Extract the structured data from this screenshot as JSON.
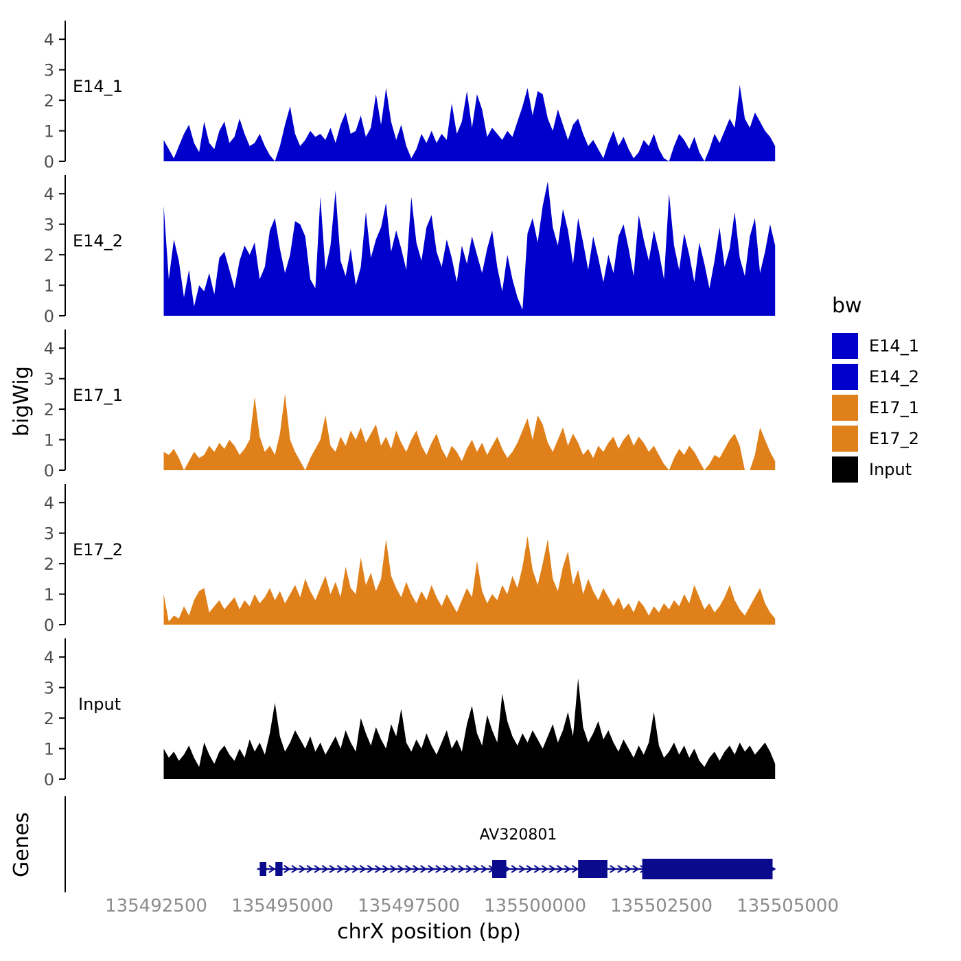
{
  "chart_data": {
    "type": "area",
    "title": "",
    "xlabel": "chrX position (bp)",
    "ylabel": "bigWig",
    "genes_axis_label": "Genes",
    "x_domain": [
      135490700,
      135505100
    ],
    "x_ticks": [
      135492500,
      135495000,
      135497500,
      135500000,
      135502500,
      135505000
    ],
    "y_ticks": [
      0,
      1,
      2,
      3,
      4
    ],
    "y_max": 4.5,
    "x_start": 135492650,
    "x_step": 100,
    "grid": "off",
    "legend_position": "right",
    "tracks": [
      {
        "name": "E14_1",
        "color": "#0000CD",
        "values": [
          0.7,
          0.4,
          0.1,
          0.5,
          0.9,
          1.2,
          0.6,
          0.3,
          1.3,
          0.6,
          0.4,
          1.0,
          1.3,
          0.6,
          0.8,
          1.4,
          0.9,
          0.5,
          0.6,
          0.9,
          0.5,
          0.2,
          0.0,
          0.5,
          1.2,
          1.8,
          0.9,
          0.5,
          0.7,
          1.0,
          0.8,
          0.9,
          0.7,
          1.1,
          0.6,
          1.2,
          1.6,
          0.9,
          1.0,
          1.5,
          0.8,
          1.1,
          2.2,
          1.2,
          2.4,
          1.3,
          0.7,
          1.2,
          0.5,
          0.1,
          0.4,
          0.9,
          0.6,
          1.0,
          0.6,
          0.9,
          0.7,
          1.9,
          0.9,
          1.3,
          2.3,
          1.1,
          2.2,
          1.7,
          0.8,
          1.1,
          0.9,
          0.7,
          1.0,
          0.8,
          1.3,
          1.8,
          2.4,
          1.5,
          2.3,
          2.2,
          1.4,
          1.0,
          1.7,
          1.2,
          0.7,
          1.2,
          1.4,
          0.9,
          0.5,
          0.7,
          0.4,
          0.1,
          0.6,
          1.0,
          0.5,
          0.8,
          0.4,
          0.1,
          0.3,
          0.7,
          0.5,
          0.9,
          0.4,
          0.1,
          0.0,
          0.5,
          0.9,
          0.7,
          0.4,
          0.8,
          0.3,
          0.0,
          0.4,
          0.9,
          0.6,
          1.0,
          1.4,
          1.1,
          2.5,
          1.4,
          1.1,
          1.6,
          1.3,
          1.0,
          0.8,
          0.5
        ]
      },
      {
        "name": "E14_2",
        "color": "#0000CD",
        "values": [
          3.6,
          1.2,
          2.5,
          1.8,
          0.6,
          1.5,
          0.3,
          1.0,
          0.8,
          1.4,
          0.7,
          1.9,
          2.1,
          1.5,
          0.9,
          1.8,
          2.3,
          2.0,
          2.4,
          1.2,
          1.6,
          2.8,
          3.2,
          2.2,
          1.4,
          2.0,
          3.1,
          3.0,
          2.6,
          1.2,
          0.9,
          3.9,
          1.5,
          2.3,
          4.1,
          1.8,
          1.3,
          2.2,
          1.0,
          1.6,
          3.4,
          1.9,
          2.5,
          2.9,
          3.7,
          2.1,
          2.8,
          2.2,
          1.5,
          3.9,
          2.4,
          1.8,
          2.9,
          3.3,
          2.1,
          1.6,
          2.5,
          1.9,
          1.1,
          2.3,
          1.7,
          2.6,
          2.0,
          1.4,
          2.2,
          2.8,
          1.6,
          0.8,
          2.0,
          1.2,
          0.6,
          0.2,
          2.7,
          3.2,
          2.4,
          3.6,
          4.4,
          2.9,
          2.3,
          3.5,
          2.8,
          1.7,
          3.2,
          2.4,
          1.5,
          2.6,
          1.9,
          1.1,
          2.0,
          1.4,
          2.6,
          3.0,
          2.2,
          1.3,
          3.3,
          2.5,
          1.8,
          2.8,
          2.1,
          1.2,
          4.0,
          2.3,
          1.5,
          2.7,
          2.0,
          1.1,
          2.4,
          1.7,
          0.9,
          1.8,
          2.9,
          1.6,
          2.2,
          3.4,
          1.9,
          1.3,
          2.6,
          3.2,
          1.4,
          2.1,
          3.0,
          2.3
        ]
      },
      {
        "name": "E17_1",
        "color": "#E0801A",
        "values": [
          0.6,
          0.5,
          0.7,
          0.4,
          0.0,
          0.3,
          0.6,
          0.4,
          0.5,
          0.8,
          0.6,
          0.9,
          0.7,
          1.0,
          0.8,
          0.5,
          0.7,
          1.0,
          2.4,
          1.1,
          0.6,
          0.8,
          0.5,
          1.2,
          2.5,
          1.0,
          0.6,
          0.3,
          0.0,
          0.4,
          0.7,
          1.0,
          1.8,
          0.8,
          0.6,
          1.1,
          0.8,
          1.3,
          1.0,
          1.4,
          0.9,
          1.2,
          1.5,
          0.8,
          1.1,
          0.7,
          1.3,
          0.9,
          0.6,
          1.0,
          1.3,
          0.8,
          0.5,
          0.9,
          1.2,
          0.7,
          0.4,
          0.8,
          0.6,
          0.3,
          0.7,
          1.0,
          0.6,
          0.9,
          0.5,
          0.8,
          1.1,
          0.7,
          0.4,
          0.6,
          0.9,
          1.3,
          1.7,
          1.0,
          1.8,
          1.5,
          0.9,
          0.6,
          1.0,
          1.4,
          0.8,
          1.2,
          0.9,
          0.5,
          0.7,
          0.4,
          0.8,
          0.6,
          0.9,
          1.1,
          0.7,
          1.0,
          1.2,
          0.8,
          1.1,
          0.9,
          0.6,
          0.8,
          0.5,
          0.2,
          0.0,
          0.4,
          0.7,
          0.5,
          0.8,
          0.6,
          0.3,
          0.0,
          0.2,
          0.5,
          0.4,
          0.7,
          1.0,
          1.2,
          0.8,
          0.0,
          0.0,
          0.5,
          1.4,
          1.0,
          0.6,
          0.3
        ]
      },
      {
        "name": "E17_2",
        "color": "#E0801A",
        "values": [
          1.0,
          0.1,
          0.3,
          0.2,
          0.6,
          0.3,
          0.8,
          1.1,
          1.2,
          0.4,
          0.6,
          0.8,
          0.5,
          0.7,
          0.9,
          0.5,
          0.8,
          0.6,
          1.0,
          0.7,
          0.9,
          1.2,
          0.8,
          1.1,
          0.7,
          1.0,
          1.3,
          0.9,
          1.5,
          1.1,
          0.8,
          1.2,
          1.6,
          1.0,
          1.4,
          0.9,
          1.9,
          1.2,
          1.0,
          2.2,
          1.3,
          1.7,
          1.1,
          1.5,
          2.8,
          1.6,
          1.2,
          0.9,
          1.4,
          1.0,
          0.7,
          1.1,
          0.8,
          1.3,
          0.9,
          0.6,
          1.0,
          0.7,
          0.4,
          0.8,
          1.2,
          0.9,
          2.1,
          1.1,
          0.7,
          1.0,
          0.8,
          1.3,
          1.0,
          1.6,
          1.2,
          1.9,
          2.9,
          1.8,
          1.3,
          2.0,
          2.8,
          1.5,
          1.1,
          1.9,
          2.4,
          1.3,
          1.8,
          1.0,
          1.5,
          1.1,
          0.8,
          1.2,
          0.9,
          0.6,
          0.9,
          0.5,
          0.7,
          0.4,
          0.8,
          0.6,
          0.3,
          0.6,
          0.4,
          0.7,
          0.5,
          0.8,
          0.6,
          1.0,
          0.7,
          1.3,
          0.9,
          0.5,
          0.7,
          0.4,
          0.6,
          0.9,
          1.3,
          0.8,
          0.5,
          0.3,
          0.6,
          0.9,
          1.2,
          0.7,
          0.4,
          0.2
        ]
      },
      {
        "name": "Input",
        "color": "#000000",
        "values": [
          1.0,
          0.7,
          0.9,
          0.6,
          0.8,
          1.1,
          0.7,
          0.4,
          1.2,
          0.8,
          0.5,
          0.9,
          1.1,
          0.8,
          0.6,
          1.0,
          0.7,
          1.3,
          0.9,
          1.2,
          0.8,
          1.5,
          2.5,
          1.4,
          0.9,
          1.2,
          1.6,
          1.3,
          1.0,
          1.4,
          0.9,
          1.2,
          0.8,
          1.1,
          1.4,
          1.0,
          1.6,
          1.2,
          0.9,
          2.0,
          1.5,
          1.1,
          1.7,
          1.3,
          1.0,
          1.8,
          1.4,
          2.3,
          1.2,
          0.9,
          1.3,
          1.0,
          1.5,
          1.1,
          0.8,
          1.2,
          1.6,
          1.0,
          1.3,
          0.9,
          1.8,
          2.4,
          1.5,
          1.1,
          2.1,
          1.6,
          1.2,
          2.8,
          1.9,
          1.4,
          1.1,
          1.5,
          1.2,
          1.6,
          1.3,
          1.0,
          1.4,
          1.8,
          1.2,
          1.6,
          2.2,
          1.4,
          3.3,
          1.7,
          1.2,
          1.5,
          1.9,
          1.3,
          1.6,
          1.2,
          0.9,
          1.3,
          1.0,
          0.7,
          1.1,
          0.8,
          1.2,
          2.2,
          1.1,
          0.7,
          0.9,
          1.2,
          0.8,
          1.1,
          0.7,
          1.0,
          0.6,
          0.4,
          0.7,
          0.9,
          0.6,
          0.9,
          1.1,
          0.8,
          1.2,
          0.9,
          1.1,
          0.8,
          1.0,
          1.2,
          0.9,
          0.5
        ]
      }
    ],
    "genes": {
      "label": "AV320801",
      "color": "#0A0A8C",
      "strand": "+",
      "start": 135494500,
      "end": 135504750,
      "arrow_spacing_bp": 150,
      "exons": [
        [
          135494550,
          135494680,
          20
        ],
        [
          135494860,
          135495000,
          20
        ],
        [
          135499150,
          135499430,
          26
        ],
        [
          135500850,
          135501430,
          26
        ],
        [
          135502120,
          135504700,
          30
        ]
      ]
    },
    "legend": {
      "title": "bw",
      "entries": [
        {
          "label": "E14_1",
          "color": "#0000CD"
        },
        {
          "label": "E14_2",
          "color": "#0000CD"
        },
        {
          "label": "E17_1",
          "color": "#E0801A"
        },
        {
          "label": "E17_2",
          "color": "#E0801A"
        },
        {
          "label": "Input",
          "color": "#000000"
        }
      ]
    }
  }
}
